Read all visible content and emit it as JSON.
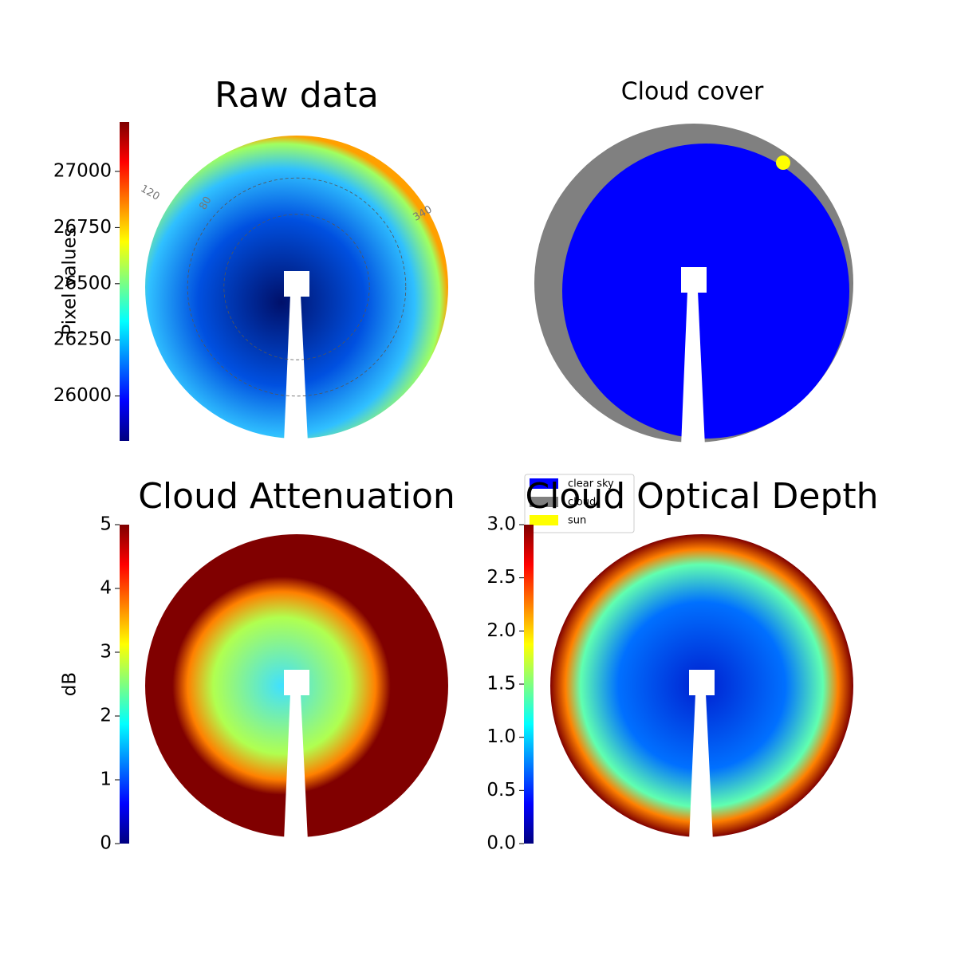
{
  "chart_data": [
    {
      "type": "image",
      "title": "Raw data",
      "colormap": "jet",
      "colorbar_label": "Pixel values",
      "clim": [
        25800,
        27220
      ],
      "cticks": [
        26000,
        26250,
        26500,
        26750,
        27000
      ],
      "annotations": [
        "120",
        "80",
        "340"
      ]
    },
    {
      "type": "image",
      "title": "Cloud cover",
      "legend": [
        {
          "name": "clear sky",
          "color": "#0000ff"
        },
        {
          "name": "cloud",
          "color": "#808080"
        },
        {
          "name": "sun",
          "color": "#ffff00"
        }
      ]
    },
    {
      "type": "image",
      "title": "Cloud Attenuation",
      "colormap": "jet",
      "colorbar_label": "dB",
      "clim": [
        0,
        5
      ],
      "cticks": [
        0,
        1,
        2,
        3,
        4,
        5
      ]
    },
    {
      "type": "image",
      "title": "Cloud Optical Depth",
      "colormap": "jet",
      "clim": [
        0,
        3
      ],
      "cticks": [
        {
          "value": 0,
          "label": "0.0"
        },
        {
          "value": 0.5,
          "label": "0.5"
        },
        {
          "value": 1,
          "label": "1.0"
        },
        {
          "value": 1.5,
          "label": "1.5"
        },
        {
          "value": 2,
          "label": "2.0"
        },
        {
          "value": 2.5,
          "label": "2.5"
        },
        {
          "value": 3,
          "label": "3.0"
        }
      ]
    }
  ]
}
